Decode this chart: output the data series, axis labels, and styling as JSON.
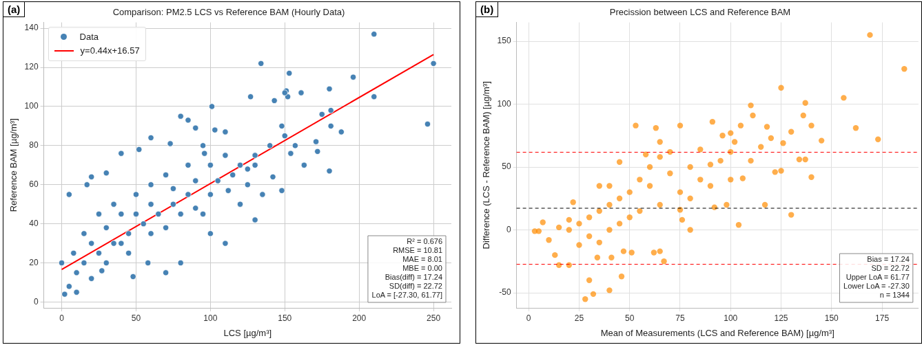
{
  "chart_data": [
    {
      "type": "scatter",
      "title": "Comparison: PM2.5 LCS vs Reference BAM (Hourly Data)",
      "xlabel": "LCS [µg/m³]",
      "ylabel": "Reference BAM [µg/m³]",
      "xlim": [
        -12,
        262
      ],
      "ylim": [
        -3,
        143
      ],
      "xticks": [
        0,
        50,
        100,
        150,
        200,
        250
      ],
      "yticks": [
        0,
        20,
        40,
        60,
        80,
        100,
        120,
        140
      ],
      "grid": true,
      "legend": "top left",
      "series": [
        {
          "name": "Data",
          "type": "scatter",
          "marker": "circle",
          "color": "#4682b4",
          "x": [
            210,
            134,
            153,
            196,
            246,
            250,
            210,
            101,
            151,
            152,
            150,
            161,
            127,
            143,
            180,
            181,
            181,
            188,
            175,
            172,
            180,
            148,
            171,
            157,
            154,
            142,
            163,
            148,
            130,
            125,
            80,
            85,
            90,
            96,
            103,
            110,
            60,
            52,
            73,
            40,
            30,
            5,
            20,
            17,
            0,
            2,
            5,
            10,
            27,
            48,
            70,
            58,
            80,
            100,
            110,
            130,
            120,
            112,
            115,
            100,
            90,
            85,
            75,
            65,
            55,
            45,
            35,
            25,
            15,
            10,
            20,
            30,
            40,
            50,
            60,
            70,
            80,
            90,
            100,
            60,
            45,
            30,
            20,
            70,
            95,
            105,
            120,
            130,
            140,
            150,
            135,
            125,
            35,
            25,
            15,
            8,
            50,
            40,
            60,
            75,
            85,
            110,
            95
          ],
          "values": [
            137,
            122,
            117,
            115,
            91,
            122,
            105,
            100,
            108,
            105,
            107,
            107,
            105,
            103,
            109,
            98,
            90,
            87,
            96,
            77,
            67,
            90,
            82,
            80,
            76,
            64,
            70,
            57,
            70,
            68,
            95,
            93,
            89,
            76,
            88,
            87,
            84,
            78,
            81,
            76,
            66,
            55,
            64,
            60,
            20,
            4,
            8,
            5,
            16,
            13,
            15,
            20,
            20,
            35,
            30,
            42,
            50,
            57,
            65,
            70,
            62,
            55,
            50,
            45,
            40,
            35,
            30,
            25,
            20,
            15,
            30,
            38,
            45,
            55,
            60,
            65,
            45,
            48,
            55,
            35,
            25,
            20,
            12,
            38,
            45,
            62,
            70,
            75,
            80,
            85,
            55,
            60,
            50,
            45,
            35,
            25,
            45,
            30,
            50,
            58,
            70,
            75,
            80
          ]
        },
        {
          "name": "y=0.44x+16.57",
          "type": "line",
          "marker": "none",
          "line_style": "solid",
          "color": "#ff0000",
          "x": [
            0,
            250
          ],
          "values": [
            16.6,
            126.6
          ]
        }
      ],
      "annotations": [
        "(a)",
        "R² = 0.676",
        "RMSE = 10.81",
        "MAE = 8.01",
        "MBE = 0.00",
        "Bias(diff) = 17.24",
        "SD(diff) = 22.72",
        "LoA = [-27.30, 61.77]"
      ]
    },
    {
      "type": "scatter",
      "title": "Precission between LCS and Reference BAM",
      "xlabel": "Mean of Measurements (LCS and Reference BAM) [µg/m³]",
      "ylabel": "Difference (LCS - Reference BAM) [µg/m³]",
      "xlim": [
        -6,
        193
      ],
      "ylim": [
        -62,
        165
      ],
      "xticks": [
        0,
        25,
        50,
        75,
        100,
        125,
        150,
        175
      ],
      "yticks": [
        -50,
        0,
        50,
        100,
        150
      ],
      "grid": true,
      "marker": "circle",
      "series": [
        {
          "type": "scatter",
          "color": "#ff8c00",
          "x": [
            169,
            186,
            125,
            156,
            110,
            137,
            111,
            136,
            140,
            162,
            173,
            130,
            145,
            118,
            105,
            75,
            63,
            91,
            96,
            100,
            102,
            115,
            120,
            126,
            134,
            122,
            125,
            140,
            137,
            130,
            117,
            104,
            106,
            98,
            75,
            76,
            92,
            80,
            62,
            65,
            67,
            47,
            51,
            41,
            34,
            46,
            30,
            32,
            40,
            28,
            20,
            15,
            13,
            5,
            7,
            3,
            10,
            22,
            35,
            65,
            53,
            45,
            65,
            60,
            55,
            50,
            45,
            40,
            35,
            30,
            25,
            20,
            15,
            30,
            40,
            50,
            60,
            70,
            80,
            90,
            85,
            75,
            65,
            55,
            45,
            35,
            25,
            20,
            40,
            58,
            70,
            85,
            95,
            100,
            110,
            90,
            100,
            80
          ],
          "values": [
            155,
            128,
            113,
            105,
            99,
            101,
            91,
            91,
            83,
            81,
            72,
            78,
            71,
            82,
            83,
            83,
            81,
            86,
            75,
            77,
            70,
            66,
            73,
            69,
            56,
            46,
            47,
            42,
            56,
            12,
            20,
            4,
            41,
            20,
            16,
            8,
            18,
            0,
            -18,
            -17,
            -25,
            -17,
            -18,
            -22,
            -22,
            -37,
            -40,
            -51,
            -48,
            -55,
            -28,
            -28,
            -20,
            -1,
            6,
            -1,
            -8,
            22,
            35,
            70,
            83,
            54,
            58,
            50,
            40,
            30,
            25,
            20,
            15,
            10,
            5,
            0,
            2,
            -5,
            0,
            10,
            35,
            45,
            50,
            52,
            40,
            30,
            20,
            15,
            5,
            -10,
            -12,
            8,
            35,
            60,
            62,
            64,
            55,
            62,
            55,
            35,
            40,
            25
          ]
        }
      ],
      "ref_lines": [
        {
          "axis": "y",
          "value": 17.24,
          "color": "#000000",
          "line_style": "dashed"
        },
        {
          "axis": "y",
          "value": 61.77,
          "color": "#ff0000",
          "line_style": "dashed"
        },
        {
          "axis": "y",
          "value": -27.3,
          "color": "#ff0000",
          "line_style": "dashed"
        }
      ],
      "annotations": [
        "(b)",
        "Bias = 17.24",
        "SD = 22.72",
        "Upper LoA = 61.77",
        "Lower LoA = -27.30",
        "n = 1344"
      ]
    }
  ]
}
